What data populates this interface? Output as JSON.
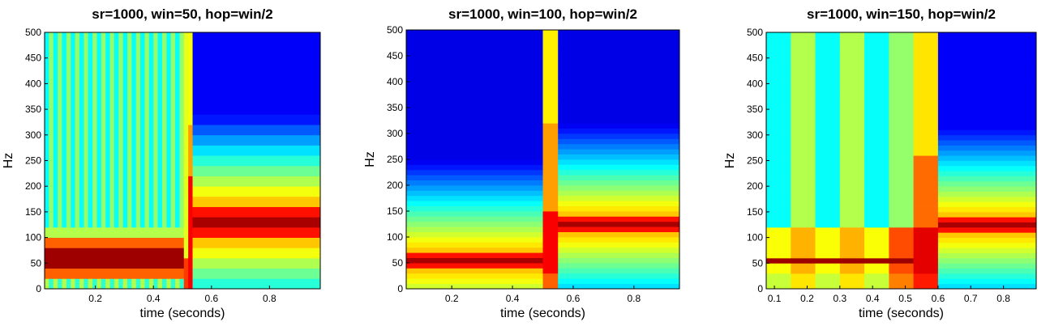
{
  "chart_data": [
    {
      "type": "heatmap",
      "title": "sr=1000, win=50, hop=win/2",
      "xlabel": "time (seconds)",
      "ylabel": "Hz",
      "xlim": [
        0.025,
        0.975
      ],
      "ylim": [
        0,
        500
      ],
      "xticks": [
        "0.2",
        "0.4",
        "0.6",
        "0.8"
      ],
      "yticks": [
        "0",
        "50",
        "100",
        "150",
        "200",
        "250",
        "300",
        "350",
        "400",
        "450",
        "500"
      ],
      "colormap": "jet",
      "freq_step_hz": 20,
      "time_edges": [
        0.025,
        0.04,
        0.055,
        0.07,
        0.085,
        0.1,
        0.115,
        0.13,
        0.145,
        0.16,
        0.175,
        0.19,
        0.205,
        0.22,
        0.235,
        0.25,
        0.265,
        0.28,
        0.295,
        0.31,
        0.325,
        0.34,
        0.355,
        0.37,
        0.385,
        0.4,
        0.415,
        0.43,
        0.445,
        0.46,
        0.475,
        0.49,
        0.505,
        0.52,
        0.535,
        0.975
      ],
      "cells": [
        {
          "t": [
            0.025,
            0.505
          ],
          "f": [
            0,
            20
          ],
          "pattern": [
            0.55,
            0.42
          ]
        },
        {
          "t": [
            0.025,
            0.505
          ],
          "f": [
            20,
            40
          ],
          "value": 0.78
        },
        {
          "t": [
            0.025,
            0.505
          ],
          "f": [
            40,
            80
          ],
          "value": 0.97
        },
        {
          "t": [
            0.025,
            0.505
          ],
          "f": [
            80,
            100
          ],
          "value": 0.78
        },
        {
          "t": [
            0.025,
            0.505
          ],
          "f": [
            100,
            120
          ],
          "value": 0.55
        },
        {
          "t": [
            0.025,
            0.505
          ],
          "f": [
            120,
            500
          ],
          "pattern": [
            0.38,
            0.52
          ]
        },
        {
          "t": [
            0.505,
            0.52
          ],
          "f": [
            0,
            60
          ],
          "value": 0.82
        },
        {
          "t": [
            0.505,
            0.52
          ],
          "f": [
            60,
            500
          ],
          "value": 0.6
        },
        {
          "t": [
            0.52,
            0.535
          ],
          "f": [
            0,
            220
          ],
          "value": 0.88
        },
        {
          "t": [
            0.52,
            0.535
          ],
          "f": [
            220,
            320
          ],
          "value": 0.72
        },
        {
          "t": [
            0.52,
            0.535
          ],
          "f": [
            320,
            500
          ],
          "value": 0.62
        }
      ],
      "after": {
        "t": [
          0.535,
          0.975
        ],
        "peak_hz": 130,
        "peak_value": 0.96,
        "floor_value": 0.12
      }
    },
    {
      "type": "heatmap",
      "title": "sr=1000, win=100, hop=win/2",
      "xlabel": "time (seconds)",
      "ylabel": "Hz",
      "xlim": [
        0.05,
        0.95
      ],
      "ylim": [
        0,
        500
      ],
      "xticks": [
        "0.2",
        "0.4",
        "0.6",
        "0.8"
      ],
      "yticks": [
        "0",
        "50",
        "100",
        "150",
        "200",
        "250",
        "300",
        "350",
        "400",
        "450",
        "500"
      ],
      "colormap": "jet",
      "freq_step_hz": 10,
      "time_edges": [
        0.05,
        0.5,
        0.55,
        0.95
      ],
      "segments": [
        {
          "t": [
            0.05,
            0.5
          ],
          "peak_hz": 55,
          "peak_value": 0.96,
          "floor_value": 0.1
        },
        {
          "t": [
            0.5,
            0.55
          ],
          "broadband": true
        },
        {
          "t": [
            0.55,
            0.95
          ],
          "peak_hz": 125,
          "peak_value": 0.96,
          "floor_value": 0.1
        }
      ]
    },
    {
      "type": "heatmap",
      "title": "sr=1000, win=150, hop=win/2",
      "xlabel": "time (seconds)",
      "ylabel": "Hz",
      "xlim": [
        0.075,
        0.9
      ],
      "ylim": [
        0,
        500
      ],
      "xticks": [
        "0.1",
        "0.2",
        "0.3",
        "0.4",
        "0.5",
        "0.6",
        "0.7",
        "0.8"
      ],
      "yticks": [
        "0",
        "50",
        "100",
        "150",
        "200",
        "250",
        "300",
        "350",
        "400",
        "450",
        "500"
      ],
      "colormap": "jet",
      "freq_step_hz": 10,
      "time_edges": [
        0.075,
        0.15,
        0.225,
        0.3,
        0.375,
        0.45,
        0.525,
        0.6,
        0.9
      ],
      "columns": [
        {
          "t": [
            0.075,
            0.15
          ],
          "base": 0.38,
          "low_base": 0.62
        },
        {
          "t": [
            0.15,
            0.225
          ],
          "base": 0.55,
          "low_base": 0.7
        },
        {
          "t": [
            0.225,
            0.3
          ],
          "base": 0.38,
          "low_base": 0.62
        },
        {
          "t": [
            0.3,
            0.375
          ],
          "base": 0.55,
          "low_base": 0.7
        },
        {
          "t": [
            0.375,
            0.45
          ],
          "base": 0.38,
          "low_base": 0.62
        },
        {
          "t": [
            0.45,
            0.525
          ],
          "base": 0.52,
          "low_base": 0.8
        },
        {
          "t": [
            0.525,
            0.6
          ],
          "base": 0.65,
          "low_base": 0.9
        }
      ],
      "early_peak": {
        "t": [
          0.075,
          0.525
        ],
        "peak_hz": 55,
        "value": 0.97
      },
      "after": {
        "t": [
          0.6,
          0.9
        ],
        "peak_hz": 125,
        "peak_value": 0.96,
        "floor_value": 0.12
      }
    }
  ]
}
